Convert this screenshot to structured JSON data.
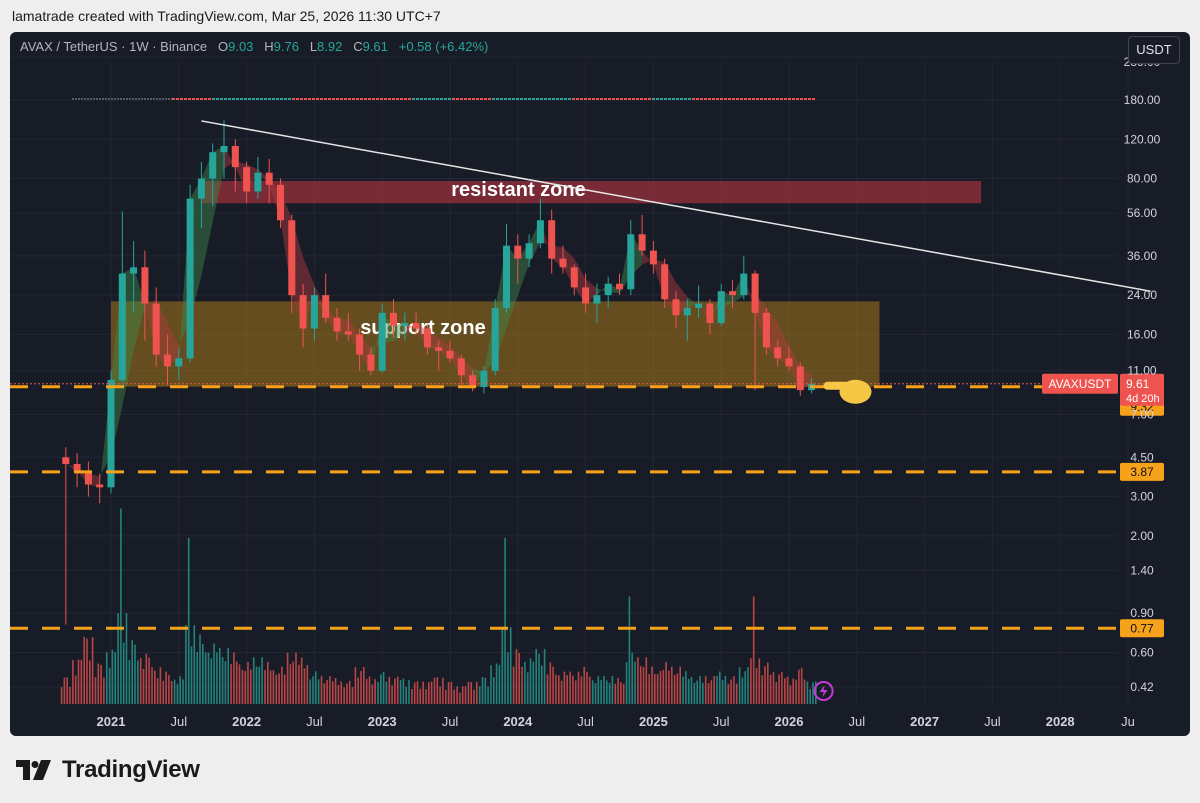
{
  "header": {
    "credit": "lamatrade created with TradingView.com, Mar 25, 2026 11:30 UTC+7"
  },
  "symbol": {
    "pair": "AVAX / TetherUS · 1W · Binance",
    "o_label": "O",
    "o_value": "9.03",
    "h_label": "H",
    "h_value": "9.76",
    "l_label": "L",
    "l_value": "8.92",
    "c_label": "C",
    "c_value": "9.61",
    "change": "+0.58 (+6.42%)"
  },
  "currency_button": "USDT",
  "footer": {
    "brand": "TradingView"
  },
  "colors": {
    "background": "#181c27",
    "up": "#26a69a",
    "down": "#ef5350",
    "level_line": "#f7a21b",
    "resistant_zone": "#8a2e3a",
    "support_zone": "#a8761a",
    "trendline": "#e6e6e6"
  },
  "chart_data": {
    "type": "candlestick",
    "y_scale": "log",
    "y_ticks": [
      "0.42",
      "0.60",
      "0.90",
      "1.40",
      "2.00",
      "3.00",
      "4.50",
      "7.00",
      "11.00",
      "16.00",
      "24.00",
      "36.00",
      "56.00",
      "80.00",
      "120.00",
      "180.00",
      "280.00"
    ],
    "x_ticks": [
      "2021",
      "Jul",
      "2022",
      "Jul",
      "2023",
      "Jul",
      "2024",
      "Jul",
      "2025",
      "Jul",
      "2026",
      "Jul",
      "2027",
      "Jul",
      "2028",
      "Ju"
    ],
    "candles": [
      {
        "date": "2020-09",
        "o": 4.5,
        "h": 5.0,
        "l": 0.8,
        "c": 4.2
      },
      {
        "date": "2020-10",
        "o": 4.2,
        "h": 4.7,
        "l": 3.3,
        "c": 3.9
      },
      {
        "date": "2020-11",
        "o": 3.9,
        "h": 4.3,
        "l": 3.0,
        "c": 3.4
      },
      {
        "date": "2020-12",
        "o": 3.4,
        "h": 3.8,
        "l": 2.8,
        "c": 3.3
      },
      {
        "date": "2021-01",
        "o": 3.3,
        "h": 11.0,
        "l": 3.1,
        "c": 10.0
      },
      {
        "date": "2021-02",
        "o": 10.0,
        "h": 57.0,
        "l": 9.8,
        "c": 30.0
      },
      {
        "date": "2021-03",
        "o": 30.0,
        "h": 42.0,
        "l": 20.0,
        "c": 32.0
      },
      {
        "date": "2021-04",
        "o": 32.0,
        "h": 38.0,
        "l": 15.0,
        "c": 22.0
      },
      {
        "date": "2021-05",
        "o": 22.0,
        "h": 26.0,
        "l": 11.5,
        "c": 13.0
      },
      {
        "date": "2021-06",
        "o": 13.0,
        "h": 16.0,
        "l": 9.5,
        "c": 11.5
      },
      {
        "date": "2021-07",
        "o": 11.5,
        "h": 14.0,
        "l": 10.0,
        "c": 12.5
      },
      {
        "date": "2021-08",
        "o": 12.5,
        "h": 75.0,
        "l": 12.0,
        "c": 65.0
      },
      {
        "date": "2021-09",
        "o": 65.0,
        "h": 95.0,
        "l": 48.0,
        "c": 80.0
      },
      {
        "date": "2021-10",
        "o": 80.0,
        "h": 115.0,
        "l": 60.0,
        "c": 105.0
      },
      {
        "date": "2021-11",
        "o": 105.0,
        "h": 146.0,
        "l": 80.0,
        "c": 112.0
      },
      {
        "date": "2021-12",
        "o": 112.0,
        "h": 120.0,
        "l": 70.0,
        "c": 90.0
      },
      {
        "date": "2022-01",
        "o": 90.0,
        "h": 95.0,
        "l": 62.0,
        "c": 70.0
      },
      {
        "date": "2022-02",
        "o": 70.0,
        "h": 100.0,
        "l": 65.0,
        "c": 85.0
      },
      {
        "date": "2022-03",
        "o": 85.0,
        "h": 98.0,
        "l": 62.0,
        "c": 75.0
      },
      {
        "date": "2022-04",
        "o": 75.0,
        "h": 80.0,
        "l": 48.0,
        "c": 52.0
      },
      {
        "date": "2022-05",
        "o": 52.0,
        "h": 55.0,
        "l": 20.0,
        "c": 24.0
      },
      {
        "date": "2022-06",
        "o": 24.0,
        "h": 27.0,
        "l": 14.0,
        "c": 17.0
      },
      {
        "date": "2022-07",
        "o": 17.0,
        "h": 26.0,
        "l": 15.0,
        "c": 24.0
      },
      {
        "date": "2022-08",
        "o": 24.0,
        "h": 30.0,
        "l": 18.0,
        "c": 19.0
      },
      {
        "date": "2022-09",
        "o": 19.0,
        "h": 21.0,
        "l": 15.0,
        "c": 16.5
      },
      {
        "date": "2022-10",
        "o": 16.5,
        "h": 20.0,
        "l": 15.0,
        "c": 16.0
      },
      {
        "date": "2022-11",
        "o": 16.0,
        "h": 17.0,
        "l": 11.0,
        "c": 13.0
      },
      {
        "date": "2022-12",
        "o": 13.0,
        "h": 14.0,
        "l": 10.5,
        "c": 11.0
      },
      {
        "date": "2023-01",
        "o": 11.0,
        "h": 22.0,
        "l": 10.8,
        "c": 20.0
      },
      {
        "date": "2023-02",
        "o": 20.0,
        "h": 23.0,
        "l": 15.5,
        "c": 17.5
      },
      {
        "date": "2023-03",
        "o": 17.5,
        "h": 20.0,
        "l": 15.0,
        "c": 18.0
      },
      {
        "date": "2023-04",
        "o": 18.0,
        "h": 20.0,
        "l": 16.0,
        "c": 17.0
      },
      {
        "date": "2023-05",
        "o": 17.0,
        "h": 17.5,
        "l": 13.0,
        "c": 14.0
      },
      {
        "date": "2023-06",
        "o": 14.0,
        "h": 15.0,
        "l": 11.0,
        "c": 13.5
      },
      {
        "date": "2023-07",
        "o": 13.5,
        "h": 15.0,
        "l": 12.0,
        "c": 12.5
      },
      {
        "date": "2023-08",
        "o": 12.5,
        "h": 13.0,
        "l": 9.5,
        "c": 10.5
      },
      {
        "date": "2023-09",
        "o": 10.5,
        "h": 11.0,
        "l": 8.9,
        "c": 9.3
      },
      {
        "date": "2023-10",
        "o": 9.3,
        "h": 11.5,
        "l": 8.7,
        "c": 11.0
      },
      {
        "date": "2023-11",
        "o": 11.0,
        "h": 23.0,
        "l": 10.5,
        "c": 21.0
      },
      {
        "date": "2023-12",
        "o": 21.0,
        "h": 50.0,
        "l": 20.0,
        "c": 40.0
      },
      {
        "date": "2024-01",
        "o": 40.0,
        "h": 45.0,
        "l": 27.0,
        "c": 35.0
      },
      {
        "date": "2024-02",
        "o": 35.0,
        "h": 45.0,
        "l": 32.0,
        "c": 41.0
      },
      {
        "date": "2024-03",
        "o": 41.0,
        "h": 65.0,
        "l": 39.0,
        "c": 52.0
      },
      {
        "date": "2024-04",
        "o": 52.0,
        "h": 58.0,
        "l": 30.0,
        "c": 35.0
      },
      {
        "date": "2024-05",
        "o": 35.0,
        "h": 40.0,
        "l": 30.0,
        "c": 32.0
      },
      {
        "date": "2024-06",
        "o": 32.0,
        "h": 33.0,
        "l": 24.0,
        "c": 26.0
      },
      {
        "date": "2024-07",
        "o": 26.0,
        "h": 30.0,
        "l": 20.0,
        "c": 22.0
      },
      {
        "date": "2024-08",
        "o": 22.0,
        "h": 27.0,
        "l": 18.0,
        "c": 24.0
      },
      {
        "date": "2024-09",
        "o": 24.0,
        "h": 29.0,
        "l": 21.0,
        "c": 27.0
      },
      {
        "date": "2024-10",
        "o": 27.0,
        "h": 30.0,
        "l": 24.0,
        "c": 25.5
      },
      {
        "date": "2024-11",
        "o": 25.5,
        "h": 52.0,
        "l": 24.0,
        "c": 45.0
      },
      {
        "date": "2024-12",
        "o": 45.0,
        "h": 55.0,
        "l": 36.0,
        "c": 38.0
      },
      {
        "date": "2025-01",
        "o": 38.0,
        "h": 42.0,
        "l": 30.0,
        "c": 33.0
      },
      {
        "date": "2025-02",
        "o": 33.0,
        "h": 35.0,
        "l": 21.0,
        "c": 23.0
      },
      {
        "date": "2025-03",
        "o": 23.0,
        "h": 25.0,
        "l": 17.0,
        "c": 19.5
      },
      {
        "date": "2025-04",
        "o": 19.5,
        "h": 23.0,
        "l": 15.0,
        "c": 21.0
      },
      {
        "date": "2025-05",
        "o": 21.0,
        "h": 26.5,
        "l": 19.0,
        "c": 22.0
      },
      {
        "date": "2025-06",
        "o": 22.0,
        "h": 23.0,
        "l": 16.0,
        "c": 18.0
      },
      {
        "date": "2025-07",
        "o": 18.0,
        "h": 27.0,
        "l": 17.5,
        "c": 25.0
      },
      {
        "date": "2025-08",
        "o": 25.0,
        "h": 28.0,
        "l": 21.0,
        "c": 24.0
      },
      {
        "date": "2025-09",
        "o": 24.0,
        "h": 36.0,
        "l": 23.0,
        "c": 30.0
      },
      {
        "date": "2025-10",
        "o": 30.0,
        "h": 31.0,
        "l": 9.0,
        "c": 20.0
      },
      {
        "date": "2025-11",
        "o": 20.0,
        "h": 21.0,
        "l": 13.0,
        "c": 14.0
      },
      {
        "date": "2025-12",
        "o": 14.0,
        "h": 15.0,
        "l": 11.5,
        "c": 12.5
      },
      {
        "date": "2026-01",
        "o": 12.5,
        "h": 14.0,
        "l": 11.0,
        "c": 11.5
      },
      {
        "date": "2026-02",
        "o": 11.5,
        "h": 12.0,
        "l": 8.5,
        "c": 9.0
      },
      {
        "date": "2026-03",
        "o": 9.0,
        "h": 10.2,
        "l": 8.7,
        "c": 9.61
      }
    ],
    "volume_scale": [
      0.3,
      0.5,
      0.75,
      0.45,
      0.6,
      1.0,
      0.7,
      0.55,
      0.4,
      0.35,
      0.3,
      0.85,
      0.75,
      0.65,
      0.6,
      0.55,
      0.45,
      0.5,
      0.45,
      0.4,
      0.55,
      0.5,
      0.35,
      0.3,
      0.28,
      0.25,
      0.4,
      0.3,
      0.35,
      0.3,
      0.28,
      0.25,
      0.25,
      0.3,
      0.25,
      0.2,
      0.25,
      0.3,
      0.45,
      0.85,
      0.6,
      0.5,
      0.6,
      0.45,
      0.35,
      0.35,
      0.4,
      0.3,
      0.3,
      0.28,
      0.55,
      0.5,
      0.4,
      0.45,
      0.4,
      0.35,
      0.3,
      0.3,
      0.35,
      0.3,
      0.4,
      0.55,
      0.45,
      0.35,
      0.3,
      0.4,
      0.25
    ],
    "emphasized_bars": [
      5,
      11,
      39,
      50,
      61
    ],
    "levels": [
      {
        "value": 9.32,
        "label": "9.32"
      },
      {
        "value": 3.87,
        "label": "3.87"
      },
      {
        "value": 0.77,
        "label": "0.77"
      }
    ],
    "current_price": {
      "symbol": "AVAXUSDT",
      "value": 9.61,
      "label": "9.61",
      "countdown": "4d 20h"
    },
    "zones": [
      {
        "name": "resistant zone",
        "from_date": "2021-09",
        "to_date": "2027-06",
        "low": 62.0,
        "high": 78.0
      },
      {
        "name": "support zone",
        "from_date": "2021-01",
        "to_date": "2026-09",
        "low": 9.32,
        "high": 22.5
      }
    ],
    "trendline": {
      "start_date": "2021-09",
      "start_value": 145.0,
      "end_date": "2028-09",
      "end_value": 25.0
    },
    "legend": "none"
  }
}
